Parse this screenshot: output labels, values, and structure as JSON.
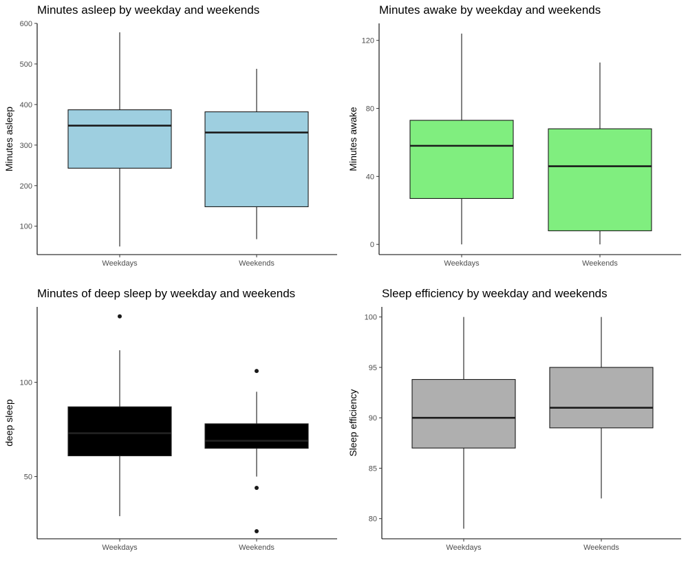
{
  "chart_data": [
    {
      "type": "box",
      "title": "Minutes asleep by weekday and weekends",
      "xlabel": "",
      "ylabel": "Minutes asleep",
      "categories": [
        "Weekdays",
        "Weekends"
      ],
      "ylim": [
        30,
        600
      ],
      "yticks": [
        100,
        200,
        300,
        400,
        500,
        600
      ],
      "fill": "#9ecfe0",
      "boxes": [
        {
          "min": 50,
          "q1": 243,
          "median": 348,
          "q3": 387,
          "max": 578,
          "outliers": []
        },
        {
          "min": 68,
          "q1": 148,
          "median": 331,
          "q3": 382,
          "max": 488,
          "outliers": []
        }
      ]
    },
    {
      "type": "box",
      "title": "Minutes awake by weekday and weekends",
      "xlabel": "",
      "ylabel": "Minutes awake",
      "categories": [
        "Weekdays",
        "Weekends"
      ],
      "ylim": [
        -6,
        130
      ],
      "yticks": [
        0,
        40,
        80,
        120
      ],
      "fill": "#80ee7f",
      "boxes": [
        {
          "min": 0,
          "q1": 27,
          "median": 58,
          "q3": 73,
          "max": 124,
          "outliers": []
        },
        {
          "min": 0,
          "q1": 8,
          "median": 46,
          "q3": 68,
          "max": 107,
          "outliers": []
        }
      ]
    },
    {
      "type": "box",
      "title": "Minutes of deep sleep by weekday and weekends",
      "xlabel": "",
      "ylabel": "deep sleep",
      "categories": [
        "Weekdays",
        "Weekends"
      ],
      "ylim": [
        17,
        140
      ],
      "yticks": [
        50,
        100
      ],
      "fill": "#000000",
      "boxes": [
        {
          "min": 29,
          "q1": 61,
          "median": 73,
          "q3": 87,
          "max": 117,
          "outliers": [
            135
          ]
        },
        {
          "min": 50,
          "q1": 65,
          "median": 69,
          "q3": 78,
          "max": 95,
          "outliers": [
            106,
            44,
            21
          ]
        }
      ]
    },
    {
      "type": "box",
      "title": "Sleep efficiency by weekday and weekends",
      "xlabel": "",
      "ylabel": "Sleep efficiency",
      "categories": [
        "Weekdays",
        "Weekends"
      ],
      "ylim": [
        78,
        101
      ],
      "yticks": [
        80,
        85,
        90,
        95,
        100
      ],
      "fill": "#afafaf",
      "boxes": [
        {
          "min": 79,
          "q1": 87,
          "median": 90,
          "q3": 93.8,
          "max": 100,
          "outliers": []
        },
        {
          "min": 82,
          "q1": 89,
          "median": 91,
          "q3": 95,
          "max": 100,
          "outliers": []
        }
      ]
    }
  ]
}
